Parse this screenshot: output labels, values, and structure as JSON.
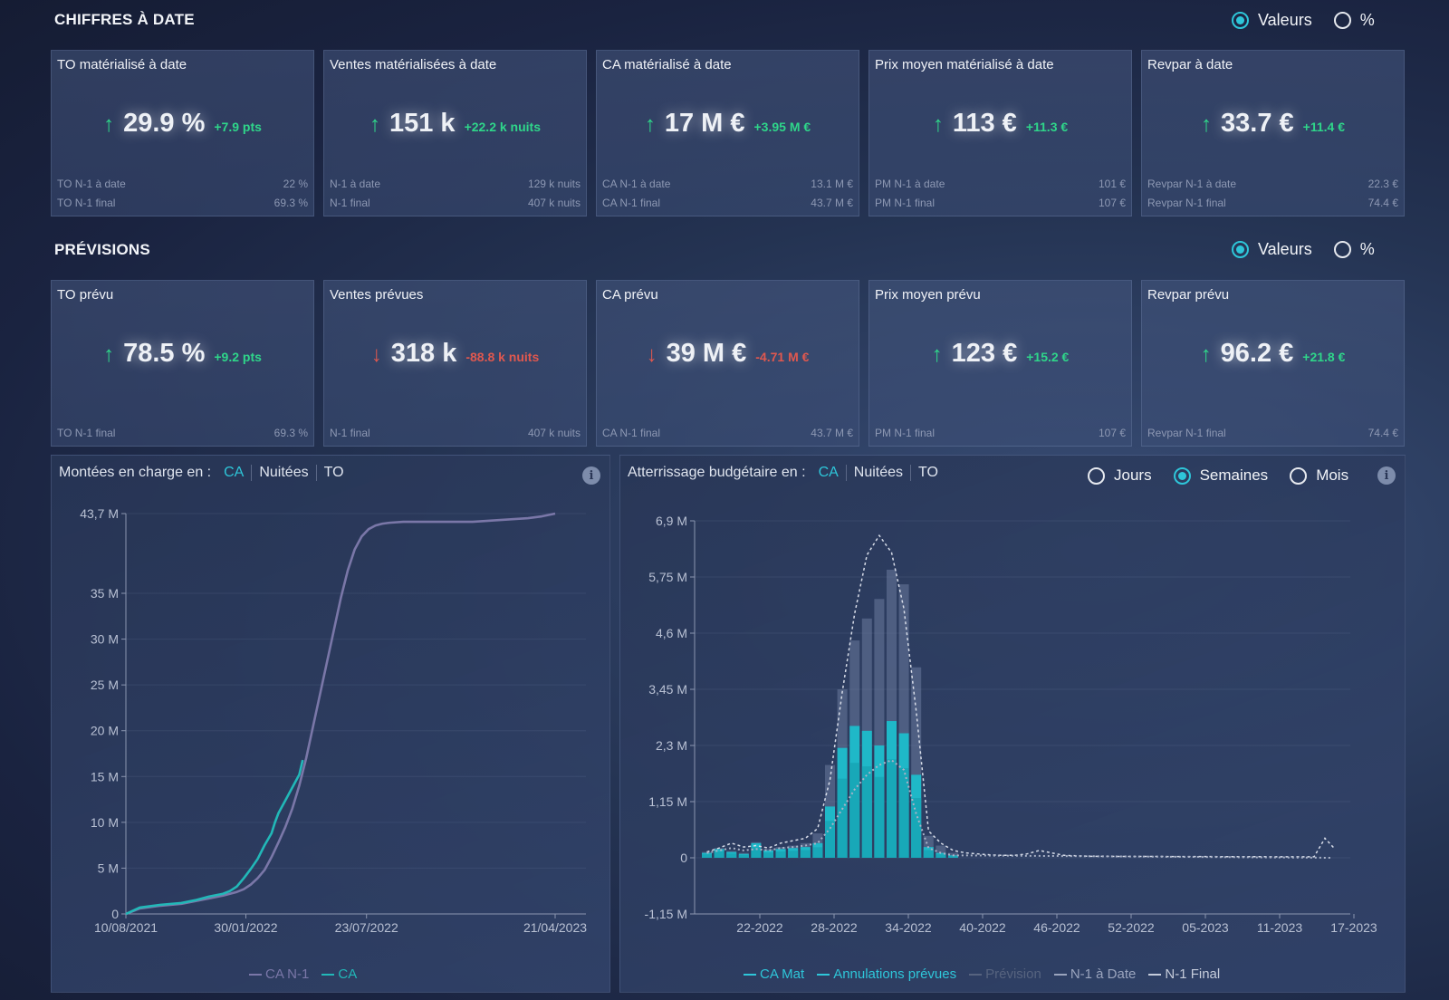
{
  "sections": {
    "date": {
      "title": "CHIFFRES À DATE",
      "radio_values": "Valeurs",
      "radio_pct": "%"
    },
    "prev": {
      "title": "PRÉVISIONS",
      "radio_values": "Valeurs",
      "radio_pct": "%"
    }
  },
  "kpis_date": [
    {
      "title": "TO matérialisé à date",
      "dir": "up",
      "value": "29.9 %",
      "delta": "+7.9 pts",
      "f1_label": "TO N-1 à date",
      "f1_value": "22 %",
      "f2_label": "TO N-1 final",
      "f2_value": "69.3 %"
    },
    {
      "title": "Ventes matérialisées à date",
      "dir": "up",
      "value": "151 k",
      "delta": "+22.2 k nuits",
      "f1_label": "N-1 à date",
      "f1_value": "129 k nuits",
      "f2_label": "N-1 final",
      "f2_value": "407 k nuits"
    },
    {
      "title": "CA matérialisé à date",
      "dir": "up",
      "value": "17 M €",
      "delta": "+3.95 M €",
      "f1_label": "CA N-1 à date",
      "f1_value": "13.1 M €",
      "f2_label": "CA N-1 final",
      "f2_value": "43.7 M €"
    },
    {
      "title": "Prix moyen matérialisé à date",
      "dir": "up",
      "value": "113 €",
      "delta": "+11.3 €",
      "f1_label": "PM N-1 à date",
      "f1_value": "101 €",
      "f2_label": "PM N-1 final",
      "f2_value": "107 €"
    },
    {
      "title": "Revpar à date",
      "dir": "up",
      "value": "33.7 €",
      "delta": "+11.4 €",
      "f1_label": "Revpar N-1 à date",
      "f1_value": "22.3 €",
      "f2_label": "Revpar N-1 final",
      "f2_value": "74.4 €"
    }
  ],
  "kpis_prev": [
    {
      "title": "TO prévu",
      "dir": "up",
      "value": "78.5 %",
      "delta": "+9.2 pts",
      "f2_label": "TO N-1 final",
      "f2_value": "69.3 %"
    },
    {
      "title": "Ventes prévues",
      "dir": "down",
      "value": "318 k",
      "delta": "-88.8 k nuits",
      "f2_label": "N-1 final",
      "f2_value": "407 k nuits"
    },
    {
      "title": "CA prévu",
      "dir": "down",
      "value": "39 M €",
      "delta": "-4.71 M €",
      "f2_label": "CA N-1 final",
      "f2_value": "43.7 M €"
    },
    {
      "title": "Prix moyen prévu",
      "dir": "up",
      "value": "123 €",
      "delta": "+15.2 €",
      "f2_label": "PM N-1 final",
      "f2_value": "107 €"
    },
    {
      "title": "Revpar prévu",
      "dir": "up",
      "value": "96.2 €",
      "delta": "+21.8 €",
      "f2_label": "Revpar N-1 final",
      "f2_value": "74.4 €"
    }
  ],
  "left_panel": {
    "label": "Montées en charge en :",
    "tabs": [
      "CA",
      "Nuitées",
      "TO"
    ],
    "info": "i",
    "legend": [
      "CA N-1",
      "CA"
    ]
  },
  "right_panel": {
    "label": "Atterrissage budgétaire en :",
    "tabs": [
      "CA",
      "Nuitées",
      "TO"
    ],
    "granularity": [
      "Jours",
      "Semaines",
      "Mois"
    ],
    "info": "i",
    "legend": [
      "CA Mat",
      "Annulations prévues",
      "Prévision",
      "N-1 à Date",
      "N-1 Final"
    ]
  },
  "colors": {
    "accent": "#2ec6d9",
    "up": "#2fd68a",
    "down": "#e0584f",
    "n1": "#7a77a8"
  },
  "chart_data": [
    {
      "type": "line",
      "title": "",
      "y_ticks": [
        "0",
        "5 M",
        "10 M",
        "15 M",
        "20 M",
        "25 M",
        "30 M",
        "35 M",
        "43,7 M"
      ],
      "y_tick_values": [
        0,
        5,
        10,
        15,
        20,
        25,
        30,
        35,
        43.7
      ],
      "x_ticks": [
        "10/08/2021",
        "30/01/2022",
        "23/07/2022",
        "21/04/2023"
      ],
      "x_tick_values": [
        0,
        173,
        347,
        619
      ],
      "ylim": [
        0,
        43.7
      ],
      "xlim": [
        0,
        619
      ],
      "series": [
        {
          "name": "CA N-1",
          "color": "#7a77a8",
          "x": [
            0,
            20,
            50,
            80,
            100,
            120,
            140,
            150,
            160,
            170,
            180,
            190,
            200,
            210,
            220,
            230,
            240,
            250,
            260,
            270,
            280,
            290,
            300,
            310,
            320,
            330,
            340,
            350,
            360,
            370,
            380,
            400,
            420,
            440,
            460,
            480,
            500,
            520,
            540,
            560,
            580,
            600,
            619
          ],
          "y": [
            0,
            0.6,
            0.9,
            1.1,
            1.4,
            1.7,
            2.0,
            2.2,
            2.4,
            2.7,
            3.2,
            3.9,
            4.8,
            6.2,
            7.8,
            9.5,
            11.5,
            14,
            17,
            20.5,
            24,
            27.5,
            31,
            34.5,
            37.5,
            39.8,
            41.2,
            42,
            42.4,
            42.6,
            42.7,
            42.8,
            42.8,
            42.8,
            42.8,
            42.8,
            42.8,
            42.9,
            43.0,
            43.1,
            43.2,
            43.4,
            43.7
          ]
        },
        {
          "name": "CA",
          "color": "#22b8b8",
          "x": [
            0,
            20,
            50,
            80,
            100,
            120,
            140,
            150,
            160,
            170,
            180,
            190,
            200,
            210,
            215,
            220,
            230,
            240,
            250,
            255
          ],
          "y": [
            0,
            0.7,
            1.0,
            1.2,
            1.5,
            1.9,
            2.2,
            2.5,
            3.0,
            3.9,
            4.9,
            6.0,
            7.5,
            8.8,
            10.0,
            11.0,
            12.4,
            13.8,
            15.2,
            16.8
          ]
        }
      ]
    },
    {
      "type": "bar",
      "title": "",
      "y_ticks": [
        "-1,15 M",
        "0",
        "1,15 M",
        "2,3 M",
        "3,45 M",
        "4,6 M",
        "5,75 M",
        "6,9 M"
      ],
      "y_tick_values": [
        -1.15,
        0,
        1.15,
        2.3,
        3.45,
        4.6,
        5.75,
        6.9
      ],
      "x_ticks": [
        "22-2022",
        "28-2022",
        "34-2022",
        "40-2022",
        "46-2022",
        "52-2022",
        "05-2023",
        "11-2023",
        "17-2023"
      ],
      "ylim": [
        -1.15,
        6.9
      ],
      "week_index_of_first_bar": 14,
      "ca_mat": [
        0.1,
        0.18,
        0.12,
        0.08,
        0.3,
        0.15,
        0.18,
        0.2,
        0.22,
        0.3,
        1.05,
        2.25,
        2.7,
        2.6,
        2.3,
        2.8,
        2.55,
        1.7,
        0.22,
        0.1,
        0.05
      ],
      "prevision": [
        0.12,
        0.2,
        0.14,
        0.1,
        0.32,
        0.18,
        0.22,
        0.25,
        0.3,
        0.5,
        1.9,
        3.45,
        4.45,
        4.9,
        5.3,
        5.9,
        5.6,
        3.9,
        0.45,
        0.25,
        0.1
      ],
      "n1_final": [
        0.12,
        0.2,
        0.3,
        0.22,
        0.25,
        0.2,
        0.3,
        0.35,
        0.4,
        0.6,
        1.6,
        3.4,
        5.0,
        6.2,
        6.6,
        6.25,
        5.1,
        3.0,
        0.55,
        0.3,
        0.15,
        0.1,
        0.08,
        0.06,
        0.05,
        0.05,
        0.08,
        0.15,
        0.1,
        0.05
      ],
      "n1_date": [
        0.1,
        0.15,
        0.2,
        0.15,
        0.18,
        0.15,
        0.2,
        0.22,
        0.25,
        0.3,
        0.6,
        1.0,
        1.4,
        1.7,
        1.9,
        2.0,
        1.8,
        0.9,
        0.2,
        0.1,
        0.05
      ]
    }
  ]
}
